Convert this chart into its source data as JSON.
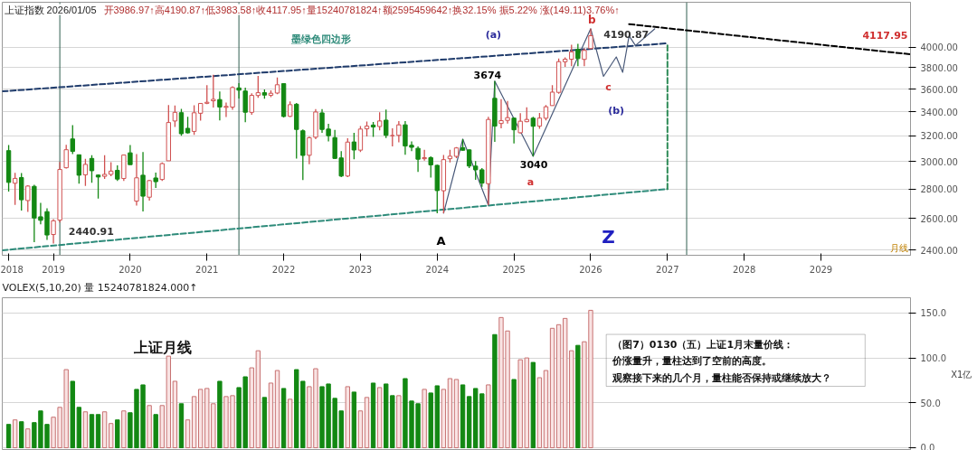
{
  "chart_data": [
    {
      "type": "candlestick",
      "title": "上证指数 2026/01/05",
      "subtitle": "开3986.97↑高4190.87↑低3983.58↑收4117.95↑量15240781824↑额2595459642↑换32.15% 振5.22% 涨(149.11)3.76%↑",
      "xlabel": "月线",
      "x": [
        "2018-06",
        "2018-07",
        "2018-08",
        "2018-09",
        "2018-10",
        "2018-11",
        "2018-12",
        "2019-01",
        "2019-02",
        "2019-03",
        "2019-04",
        "2019-05",
        "2019-06",
        "2019-07",
        "2019-08",
        "2019-09",
        "2019-10",
        "2019-11",
        "2019-12",
        "2020-01",
        "2020-02",
        "2020-03",
        "2020-04",
        "2020-05",
        "2020-06",
        "2020-07",
        "2020-08",
        "2020-09",
        "2020-10",
        "2020-11",
        "2020-12",
        "2021-01",
        "2021-02",
        "2021-03",
        "2021-04",
        "2021-05",
        "2021-06",
        "2021-07",
        "2021-08",
        "2021-09",
        "2021-10",
        "2021-11",
        "2021-12",
        "2022-01",
        "2022-02",
        "2022-03",
        "2022-04",
        "2022-05",
        "2022-06",
        "2022-07",
        "2022-08",
        "2022-09",
        "2022-10",
        "2022-11",
        "2022-12",
        "2023-01",
        "2023-02",
        "2023-03",
        "2023-04",
        "2023-05",
        "2023-06",
        "2023-07",
        "2023-08",
        "2023-09",
        "2023-10",
        "2023-11",
        "2023-12",
        "2024-01",
        "2024-02",
        "2024-03",
        "2024-04",
        "2024-05",
        "2024-06",
        "2024-07",
        "2024-08",
        "2024-09",
        "2024-10",
        "2024-11",
        "2024-12",
        "2025-01",
        "2025-02",
        "2025-03",
        "2025-04",
        "2025-05",
        "2025-06",
        "2025-07",
        "2025-08",
        "2025-09",
        "2025-10",
        "2025-11",
        "2025-12",
        "2026-01"
      ],
      "ohlc": [
        [
          3084,
          3128,
          2782,
          2847
        ],
        [
          2841,
          2916,
          2691,
          2876
        ],
        [
          2882,
          2915,
          2653,
          2725
        ],
        [
          2720,
          2827,
          2644,
          2821
        ],
        [
          2819,
          2830,
          2449,
          2603
        ],
        [
          2611,
          2704,
          2562,
          2588
        ],
        [
          2645,
          2667,
          2463,
          2494
        ],
        [
          2497,
          2596,
          2440.91,
          2585
        ],
        [
          2589,
          2997,
          2574,
          2941
        ],
        [
          2954,
          3129,
          2949,
          3091
        ],
        [
          3176,
          3288,
          3057,
          3078
        ],
        [
          3052,
          3052,
          2838,
          2899
        ],
        [
          2902,
          3022,
          2822,
          2979
        ],
        [
          3024,
          3048,
          2844,
          2932
        ],
        [
          2900,
          2905,
          2733,
          2886
        ],
        [
          2891,
          3048,
          2872,
          2905
        ],
        [
          2905,
          2996,
          2891,
          2929
        ],
        [
          2935,
          2971,
          2857,
          2871
        ],
        [
          2875,
          3053,
          2857,
          3050
        ],
        [
          3067,
          3127,
          2977,
          2977
        ],
        [
          2716,
          3058,
          2685,
          2880
        ],
        [
          2899,
          3074,
          2646,
          2750
        ],
        [
          2743,
          2865,
          2720,
          2860
        ],
        [
          2879,
          2918,
          2807,
          2852
        ],
        [
          2868,
          2993,
          2858,
          2985
        ],
        [
          3006,
          3458,
          3006,
          3310
        ],
        [
          3323,
          3454,
          3273,
          3396
        ],
        [
          3393,
          3426,
          3202,
          3218
        ],
        [
          3262,
          3358,
          3220,
          3225
        ],
        [
          3237,
          3457,
          3209,
          3392
        ],
        [
          3388,
          3474,
          3325,
          3473
        ],
        [
          3474,
          3637,
          3466,
          3483
        ],
        [
          3496,
          3732,
          3437,
          3509
        ],
        [
          3507,
          3578,
          3328,
          3442
        ],
        [
          3439,
          3481,
          3357,
          3447
        ],
        [
          3441,
          3625,
          3417,
          3615
        ],
        [
          3611,
          3654,
          3517,
          3591
        ],
        [
          3583,
          3614,
          3312,
          3397
        ],
        [
          3396,
          3563,
          3375,
          3544
        ],
        [
          3543,
          3723,
          3522,
          3568
        ],
        [
          3568,
          3597,
          3515,
          3547
        ],
        [
          3545,
          3590,
          3528,
          3563
        ],
        [
          3565,
          3708,
          3555,
          3640
        ],
        [
          3650,
          3651,
          3353,
          3361
        ],
        [
          3362,
          3490,
          3357,
          3462
        ],
        [
          3466,
          3477,
          3023,
          3253
        ],
        [
          3242,
          3253,
          2864,
          3047
        ],
        [
          3048,
          3194,
          2981,
          3186
        ],
        [
          3190,
          3424,
          3175,
          3399
        ],
        [
          3391,
          3424,
          3225,
          3253
        ],
        [
          3256,
          3300,
          3156,
          3202
        ],
        [
          3187,
          3250,
          3021,
          3024
        ],
        [
          3028,
          3080,
          2885,
          2893
        ],
        [
          2893,
          3182,
          2886,
          3151
        ],
        [
          3152,
          3226,
          3017,
          3089
        ],
        [
          3088,
          3281,
          3074,
          3256
        ],
        [
          3258,
          3318,
          3196,
          3280
        ],
        [
          3289,
          3314,
          3192,
          3273
        ],
        [
          3277,
          3396,
          3245,
          3323
        ],
        [
          3330,
          3419,
          3184,
          3205
        ],
        [
          3202,
          3263,
          3117,
          3203
        ],
        [
          3205,
          3322,
          3150,
          3291
        ],
        [
          3291,
          3322,
          3053,
          3120
        ],
        [
          3126,
          3156,
          3080,
          3110
        ],
        [
          3102,
          3117,
          2923,
          3018
        ],
        [
          3022,
          3091,
          3007,
          3030
        ],
        [
          3030,
          3040,
          2882,
          2975
        ],
        [
          2972,
          2976,
          2635,
          2789
        ],
        [
          2788,
          3050,
          2635,
          3015
        ],
        [
          3022,
          3091,
          2993,
          3041
        ],
        [
          3040,
          3112,
          3026,
          3105
        ],
        [
          3107,
          3175,
          3083,
          3087
        ],
        [
          3090,
          3093,
          2951,
          2967
        ],
        [
          2966,
          3004,
          2865,
          2939
        ],
        [
          2939,
          2951,
          2815,
          2842
        ],
        [
          2838,
          3358,
          2689,
          3336
        ],
        [
          3518,
          3674,
          3152,
          3280
        ],
        [
          3302,
          3510,
          3263,
          3326
        ],
        [
          3328,
          3494,
          3302,
          3351
        ],
        [
          3347,
          3352,
          3140,
          3250
        ],
        [
          3226,
          3388,
          3219,
          3321
        ],
        [
          3317,
          3440,
          3313,
          3336
        ],
        [
          3346,
          3358,
          3040,
          3279
        ],
        [
          3280,
          3391,
          3259,
          3347
        ],
        [
          3346,
          3459,
          3327,
          3444
        ],
        [
          3454,
          3636,
          3453,
          3573
        ],
        [
          3571,
          3888,
          3559,
          3858
        ],
        [
          3857,
          3900,
          3808,
          3882
        ],
        [
          3882,
          4025,
          3815,
          3954
        ],
        [
          3979,
          4034,
          3815,
          3888
        ],
        [
          3880,
          3990,
          3815,
          3969
        ],
        [
          3986.97,
          4190.87,
          3983.58,
          4117.95
        ]
      ],
      "colors": [
        "#138813",
        "#d05050",
        "#138813",
        "#d05050",
        "#138813",
        "#138813",
        "#138813",
        "#d05050",
        "#d05050",
        "#d05050",
        "#138813",
        "#138813",
        "#d05050",
        "#138813",
        "#138813",
        "#d05050",
        "#d05050",
        "#138813",
        "#d05050",
        "#138813",
        "#d05050",
        "#138813",
        "#d05050",
        "#138813",
        "#d05050",
        "#d05050",
        "#d05050",
        "#138813",
        "#138813",
        "#d05050",
        "#d05050",
        "#d05050",
        "#d05050",
        "#138813",
        "#d05050",
        "#d05050",
        "#138813",
        "#138813",
        "#d05050",
        "#d05050",
        "#138813",
        "#d05050",
        "#d05050",
        "#138813",
        "#d05050",
        "#138813",
        "#138813",
        "#d05050",
        "#d05050",
        "#138813",
        "#138813",
        "#138813",
        "#138813",
        "#d05050",
        "#138813",
        "#d05050",
        "#d05050",
        "#138813",
        "#d05050",
        "#138813",
        "#d05050",
        "#d05050",
        "#138813",
        "#138813",
        "#138813",
        "#d05050",
        "#138813",
        "#138813",
        "#d05050",
        "#d05050",
        "#d05050",
        "#138813",
        "#138813",
        "#138813",
        "#138813",
        "#d05050",
        "#138813",
        "#d05050",
        "#d05050",
        "#138813",
        "#d05050",
        "#d05050",
        "#138813",
        "#d05050",
        "#d05050",
        "#d05050",
        "#d05050",
        "#d05050",
        "#d05050",
        "#138813",
        "#d05050",
        "#d05050"
      ],
      "series": [
        {
          "type": "line",
          "x": [
            "2018-05",
            "2027-01"
          ],
          "values": [
            3580,
            4040
          ],
          "color": "#1f3b6b",
          "line_style": "dashed"
        },
        {
          "type": "line",
          "x": [
            "2018-05",
            "2027-01"
          ],
          "values": [
            2400,
            2800
          ],
          "color": "#2e8b7a",
          "line_style": "dashed"
        },
        {
          "type": "line",
          "x": [
            "2027-01",
            "2027-01"
          ],
          "values": [
            2800,
            4040
          ],
          "color": "#2e8b57",
          "line_style": "dashed"
        },
        {
          "type": "line",
          "x": [
            "2026-07",
            "2030-03"
          ],
          "values": [
            4240,
            3930
          ],
          "color": "#000000",
          "line_style": "dashed"
        },
        {
          "type": "line",
          "x": [
            "2024-02",
            "2024-05",
            "2024-09",
            "2024-10",
            "2025-04",
            "2026-01",
            "2026-03",
            "2026-05",
            "2026-06",
            "2026-07",
            "2026-08",
            "2026-11"
          ],
          "values": [
            2635,
            3175,
            2689,
            3674,
            3040,
            4190.87,
            3718,
            3904,
            3756,
            4117,
            4018,
            4190
          ],
          "color": "#4a5a7a",
          "line_style": "solid"
        }
      ],
      "ref_lines": [
        {
          "axis": "x",
          "value": "2019-02",
          "color": "#2f5f4f"
        },
        {
          "axis": "x",
          "value": "2021-06",
          "color": "#2f5f4f"
        },
        {
          "axis": "x",
          "value": "2027-04",
          "color": "#2f5f4f"
        }
      ],
      "annotations": [
        "墨绿色四边形",
        "(a)",
        "b",
        "3674",
        "4190.87",
        "c",
        "(b)",
        "3040",
        "a",
        "A",
        "Z",
        "2440.91",
        "4117.95"
      ],
      "xlim": [
        "2018-05",
        "2030-03"
      ],
      "ylim": [
        2370,
        4480
      ],
      "log": true,
      "grid": "y",
      "xticks": [
        {
          "value": "2018-06",
          "label": "2018"
        },
        {
          "value": "2019-01",
          "label": "2019"
        },
        {
          "value": "2020-01",
          "label": "2020"
        },
        {
          "value": "2021-01",
          "label": "2021"
        },
        {
          "value": "2022-01",
          "label": "2022"
        },
        {
          "value": "2023-01",
          "label": "2023"
        },
        {
          "value": "2024-01",
          "label": "2024"
        },
        {
          "value": "2025-01",
          "label": "2025"
        },
        {
          "value": "2026-01",
          "label": "2026"
        },
        {
          "value": "2027-01",
          "label": "2027"
        },
        {
          "value": "2028-01",
          "label": "2028"
        },
        {
          "value": "2029-01",
          "label": "2029"
        }
      ],
      "yticks": [
        {
          "value": 2400,
          "label": "2400.00"
        },
        {
          "value": 2600,
          "label": "2600.00"
        },
        {
          "value": 2800,
          "label": "2800.00"
        },
        {
          "value": 3000,
          "label": "3000.00"
        },
        {
          "value": 3200,
          "label": "3200.00"
        },
        {
          "value": 3400,
          "label": "3400.00"
        },
        {
          "value": 3600,
          "label": "3600.00"
        },
        {
          "value": 3800,
          "label": "3800.00"
        },
        {
          "value": 4000,
          "label": "4000.00"
        }
      ]
    },
    {
      "type": "bar",
      "title": "VOLEX(5,10,20) 量 15240781824.000↑",
      "ylabel": "X1亿",
      "x": [
        "2018-06",
        "2018-07",
        "2018-08",
        "2018-09",
        "2018-10",
        "2018-11",
        "2018-12",
        "2019-01",
        "2019-02",
        "2019-03",
        "2019-04",
        "2019-05",
        "2019-06",
        "2019-07",
        "2019-08",
        "2019-09",
        "2019-10",
        "2019-11",
        "2019-12",
        "2020-01",
        "2020-02",
        "2020-03",
        "2020-04",
        "2020-05",
        "2020-06",
        "2020-07",
        "2020-08",
        "2020-09",
        "2020-10",
        "2020-11",
        "2020-12",
        "2021-01",
        "2021-02",
        "2021-03",
        "2021-04",
        "2021-05",
        "2021-06",
        "2021-07",
        "2021-08",
        "2021-09",
        "2021-10",
        "2021-11",
        "2021-12",
        "2022-01",
        "2022-02",
        "2022-03",
        "2022-04",
        "2022-05",
        "2022-06",
        "2022-07",
        "2022-08",
        "2022-09",
        "2022-10",
        "2022-11",
        "2022-12",
        "2023-01",
        "2023-02",
        "2023-03",
        "2023-04",
        "2023-05",
        "2023-06",
        "2023-07",
        "2023-08",
        "2023-09",
        "2023-10",
        "2023-11",
        "2023-12",
        "2024-01",
        "2024-02",
        "2024-03",
        "2024-04",
        "2024-05",
        "2024-06",
        "2024-07",
        "2024-08",
        "2024-09",
        "2024-10",
        "2024-11",
        "2024-12",
        "2025-01",
        "2025-02",
        "2025-03",
        "2025-04",
        "2025-05",
        "2025-06",
        "2025-07",
        "2025-08",
        "2025-09",
        "2025-10",
        "2025-11",
        "2025-12",
        "2026-01"
      ],
      "values": [
        26,
        31,
        29,
        21,
        28,
        41,
        26,
        34,
        45,
        87,
        74,
        45,
        40,
        37,
        37,
        40,
        27,
        31,
        41,
        39,
        65,
        70,
        47,
        37,
        47,
        102,
        74,
        49,
        31,
        57,
        65,
        66,
        49,
        74,
        57,
        58,
        67,
        79,
        89,
        108,
        56,
        72,
        86,
        66,
        54,
        87,
        74,
        68,
        88,
        68,
        71,
        55,
        41,
        68,
        62,
        41,
        56,
        72,
        67,
        71,
        58,
        58,
        77,
        52,
        49,
        65,
        61,
        69,
        65,
        77,
        76,
        70,
        57,
        66,
        60,
        70,
        126,
        145,
        130,
        76,
        98,
        100,
        95,
        78,
        86,
        133,
        137,
        144,
        108,
        114,
        118,
        153
      ],
      "colors": [
        "#138813",
        "#f9e3e3",
        "#138813",
        "#f9e3e3",
        "#138813",
        "#138813",
        "#138813",
        "#f9e3e3",
        "#f9e3e3",
        "#f9e3e3",
        "#138813",
        "#138813",
        "#f9e3e3",
        "#138813",
        "#138813",
        "#f9e3e3",
        "#f9e3e3",
        "#138813",
        "#f9e3e3",
        "#138813",
        "#138813",
        "#138813",
        "#f9e3e3",
        "#138813",
        "#f9e3e3",
        "#f9e3e3",
        "#f9e3e3",
        "#138813",
        "#f9e3e3",
        "#f9e3e3",
        "#f9e3e3",
        "#f9e3e3",
        "#f9e3e3",
        "#138813",
        "#f9e3e3",
        "#f9e3e3",
        "#138813",
        "#138813",
        "#f9e3e3",
        "#f9e3e3",
        "#138813",
        "#f9e3e3",
        "#f9e3e3",
        "#138813",
        "#f9e3e3",
        "#138813",
        "#138813",
        "#f9e3e3",
        "#f9e3e3",
        "#138813",
        "#138813",
        "#138813",
        "#138813",
        "#f9e3e3",
        "#138813",
        "#f9e3e3",
        "#f9e3e3",
        "#138813",
        "#f9e3e3",
        "#138813",
        "#138813",
        "#f9e3e3",
        "#138813",
        "#138813",
        "#138813",
        "#f9e3e3",
        "#138813",
        "#138813",
        "#f9e3e3",
        "#f9e3e3",
        "#f9e3e3",
        "#138813",
        "#138813",
        "#138813",
        "#138813",
        "#f9e3e3",
        "#138813",
        "#f9e3e3",
        "#f9e3e3",
        "#138813",
        "#f9e3e3",
        "#f9e3e3",
        "#138813",
        "#f9e3e3",
        "#f9e3e3",
        "#f9e3e3",
        "#f9e3e3",
        "#f9e3e3",
        "#f9e3e3",
        "#138813",
        "#f9e3e3",
        "#f9e3e3"
      ],
      "annotations": [
        "上证月线",
        "（图7）0130（五）上证1月末量价线：",
        "价涨量升，量柱达到了空前的高度。",
        "观察接下来的几个月，量柱能否保持或继续放大？"
      ],
      "xlim": [
        "2018-05",
        "2030-03"
      ],
      "ylim": [
        -3,
        167
      ],
      "grid": "y",
      "tick_labels": "y",
      "yticks": [
        {
          "value": 0,
          "label": "0.0"
        },
        {
          "value": 50,
          "label": "50.0"
        },
        {
          "value": 100,
          "label": "100.0"
        },
        {
          "value": 150,
          "label": "150.0"
        }
      ]
    }
  ]
}
